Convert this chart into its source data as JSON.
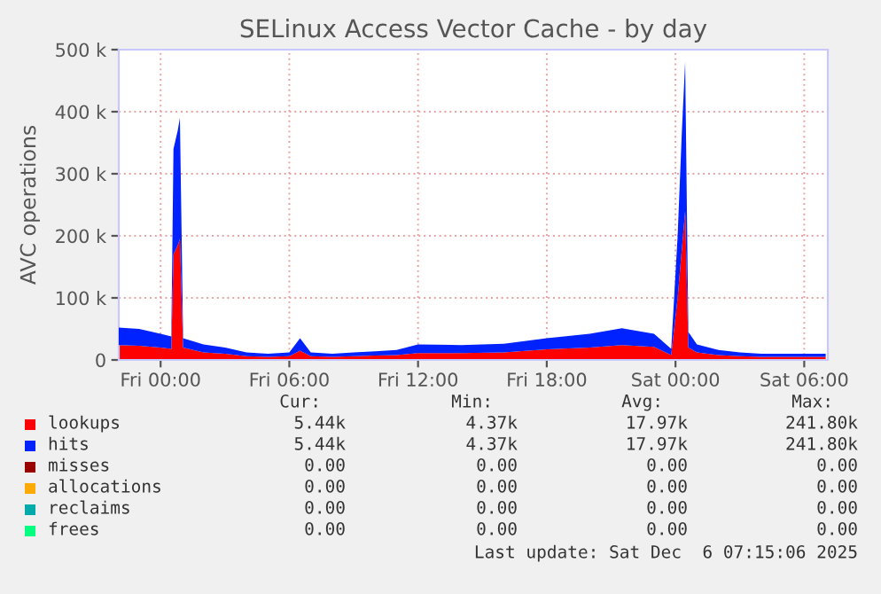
{
  "chart_data": {
    "type": "area",
    "title": "SELinux Access Vector Cache - by day",
    "ylabel": "AVC operations",
    "stacked": true,
    "x": [
      "2025-12-04T22:03",
      "2025-12-04T23:00",
      "2025-12-05T00:00",
      "2025-12-05T00:30",
      "2025-12-05T00:36",
      "2025-12-05T00:48",
      "2025-12-05T00:54",
      "2025-12-05T01:03",
      "2025-12-05T02:00",
      "2025-12-05T03:00",
      "2025-12-05T04:00",
      "2025-12-05T05:00",
      "2025-12-05T06:00",
      "2025-12-05T06:30",
      "2025-12-05T07:00",
      "2025-12-05T08:00",
      "2025-12-05T09:00",
      "2025-12-05T10:00",
      "2025-12-05T11:00",
      "2025-12-05T12:00",
      "2025-12-05T14:00",
      "2025-12-05T16:00",
      "2025-12-05T18:00",
      "2025-12-05T20:00",
      "2025-12-05T21:30",
      "2025-12-05T23:00",
      "2025-12-05T23:48",
      "2025-12-06T00:06",
      "2025-12-06T00:18",
      "2025-12-06T00:27",
      "2025-12-06T00:36",
      "2025-12-06T01:00",
      "2025-12-06T02:00",
      "2025-12-06T03:00",
      "2025-12-06T04:00",
      "2025-12-06T06:00",
      "2025-12-06T07:00"
    ],
    "series": [
      {
        "name": "lookups",
        "color": "#ff0000",
        "values": [
          24000,
          23000,
          20000,
          18000,
          170000,
          185000,
          195000,
          20000,
          12000,
          10000,
          6000,
          5000,
          6000,
          15000,
          6000,
          5000,
          6000,
          7000,
          8000,
          11000,
          11000,
          12000,
          17000,
          20000,
          24000,
          21000,
          8000,
          100000,
          180000,
          240000,
          20000,
          12000,
          8000,
          6000,
          5000,
          5000,
          5000
        ]
      },
      {
        "name": "hits",
        "color": "#0022ff",
        "values": [
          28000,
          27000,
          22000,
          20000,
          170000,
          185000,
          195000,
          15000,
          13000,
          10000,
          6000,
          5000,
          6000,
          20000,
          6000,
          5000,
          6000,
          7000,
          8000,
          14000,
          13000,
          14000,
          18000,
          22000,
          27000,
          21000,
          10000,
          100000,
          190000,
          240000,
          25000,
          13000,
          8000,
          6000,
          5000,
          5000,
          5000
        ]
      },
      {
        "name": "misses",
        "color": "#990000",
        "values": [
          null,
          null,
          null,
          null,
          null,
          null,
          null,
          null,
          null,
          null,
          null,
          null,
          null,
          null,
          null,
          null,
          null,
          null,
          null,
          null,
          null,
          null,
          null,
          null,
          null,
          null,
          null,
          null,
          null,
          null,
          null,
          null,
          null,
          null,
          null,
          null,
          null
        ]
      },
      {
        "name": "allocations",
        "color": "#ffaa00",
        "values": [
          null,
          null,
          null,
          null,
          null,
          null,
          null,
          null,
          null,
          null,
          null,
          null,
          null,
          null,
          null,
          null,
          null,
          null,
          null,
          null,
          null,
          null,
          null,
          null,
          null,
          null,
          null,
          null,
          null,
          null,
          null,
          null,
          null,
          null,
          null,
          null,
          null
        ]
      },
      {
        "name": "reclaims",
        "color": "#00aaaa",
        "values": [
          null,
          null,
          null,
          null,
          null,
          null,
          null,
          null,
          null,
          null,
          null,
          null,
          null,
          null,
          null,
          null,
          null,
          null,
          null,
          null,
          null,
          null,
          null,
          null,
          null,
          null,
          null,
          null,
          null,
          null,
          null,
          null,
          null,
          null,
          null,
          null,
          null
        ]
      },
      {
        "name": "frees",
        "color": "#00ff80",
        "values": [
          null,
          null,
          null,
          null,
          null,
          null,
          null,
          null,
          null,
          null,
          null,
          null,
          null,
          null,
          null,
          null,
          null,
          null,
          null,
          null,
          null,
          null,
          null,
          null,
          null,
          null,
          null,
          null,
          null,
          null,
          null,
          null,
          null,
          null,
          null,
          null,
          null
        ]
      }
    ],
    "xlim": [
      "2025-12-04T22:03",
      "2025-12-06T07:06"
    ],
    "xticks": [
      {
        "value": "2025-12-05T00:00",
        "label": "Fri 00:00"
      },
      {
        "value": "2025-12-05T06:00",
        "label": "Fri 06:00"
      },
      {
        "value": "2025-12-05T12:00",
        "label": "Fri 12:00"
      },
      {
        "value": "2025-12-05T18:00",
        "label": "Fri 18:00"
      },
      {
        "value": "2025-12-06T00:00",
        "label": "Sat 00:00"
      },
      {
        "value": "2025-12-06T06:00",
        "label": "Sat 06:00"
      }
    ],
    "ylim": [
      0,
      500000
    ],
    "yticks": [
      0,
      {
        "value": 100000,
        "label": "100 k"
      },
      {
        "value": 200000,
        "label": "200 k"
      },
      {
        "value": 300000,
        "label": "300 k"
      },
      {
        "value": 400000,
        "label": "400 k"
      },
      {
        "value": 500000,
        "label": "500 k"
      }
    ],
    "grid": true,
    "legend": "bottom",
    "annotations": [
      "Cur:",
      "Min:",
      "Avg:",
      "Max:",
      "5.44k",
      "4.37k",
      "17.97k",
      "241.80k",
      "5.44k",
      "4.37k",
      "17.97k",
      "241.80k",
      "0.00",
      "0.00",
      "0.00",
      "0.00",
      "0.00",
      "0.00",
      "0.00",
      "0.00",
      "0.00",
      "0.00",
      "0.00",
      "0.00",
      "0.00",
      "0.00",
      "0.00",
      "0.00",
      "Last update: Sat Dec  6 07:15:06 2025"
    ]
  }
}
